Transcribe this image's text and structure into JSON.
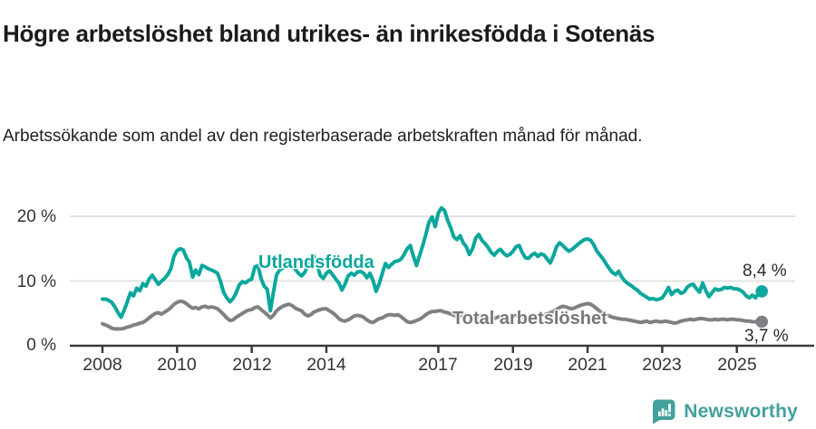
{
  "chart_data": {
    "type": "line",
    "title": "Högre arbetslöshet bland utrikes- än inrikesfödda i Sotenäs",
    "subtitle": "Arbetssökande som andel av den registerbaserade arbetskraften månad för månad.",
    "x_unit": "month",
    "x_range": "2008-01 till 2025-09",
    "x_tick_labels": [
      "2008",
      "2010",
      "2012",
      "2014",
      "2017",
      "2019",
      "2021",
      "2023",
      "2025"
    ],
    "y_tick_labels": [
      "0 %",
      "10 %",
      "20 %"
    ],
    "y_tick_values": [
      0,
      10,
      20
    ],
    "ylim": [
      0,
      22
    ],
    "grid": true,
    "legend_position": "inline-labels",
    "series": [
      {
        "name": "Utlandsfödda",
        "color": "#0ba79c",
        "end_label": "8,4 %",
        "end_value": 8.4,
        "values": [
          7.2,
          7.2,
          7.0,
          6.7,
          6.0,
          5.1,
          4.4,
          5.5,
          6.8,
          8.2,
          7.7,
          8.9,
          8.5,
          9.6,
          9.2,
          10.3,
          10.9,
          10.2,
          9.5,
          10.0,
          10.4,
          11.0,
          11.9,
          13.8,
          14.7,
          15.0,
          14.8,
          13.6,
          12.9,
          10.6,
          11.7,
          11.0,
          12.4,
          12.2,
          11.9,
          11.7,
          11.5,
          11.2,
          9.9,
          8.2,
          7.4,
          6.8,
          7.3,
          8.2,
          9.4,
          9.9,
          9.7,
          10.1,
          10.3,
          12.2,
          12.4,
          10.4,
          9.2,
          8.7,
          5.4,
          8.3,
          11.0,
          11.7,
          12.0,
          12.3,
          12.6,
          12.3,
          11.8,
          11.2,
          10.8,
          11.3,
          12.4,
          13.3,
          13.9,
          12.6,
          10.9,
          10.4,
          11.2,
          11.6,
          11.0,
          10.3,
          9.7,
          8.6,
          9.5,
          10.8,
          11.2,
          10.9,
          11.4,
          11.5,
          11.2,
          10.5,
          11.2,
          10.1,
          8.4,
          9.6,
          11.2,
          12.7,
          12.1,
          12.6,
          13.0,
          13.1,
          13.4,
          14.1,
          15.0,
          15.5,
          13.8,
          12.4,
          14.0,
          15.5,
          17.2,
          19.1,
          19.9,
          18.4,
          20.5,
          21.3,
          20.9,
          19.4,
          18.2,
          16.8,
          16.4,
          17.0,
          15.9,
          15.3,
          14.1,
          15.0,
          16.6,
          17.2,
          16.3,
          15.8,
          15.2,
          14.4,
          14.0,
          14.6,
          14.9,
          14.3,
          13.9,
          14.1,
          14.6,
          15.3,
          15.5,
          14.4,
          13.6,
          13.5,
          14.0,
          14.3,
          13.8,
          14.2,
          14.0,
          13.4,
          12.8,
          13.9,
          15.3,
          15.9,
          15.5,
          15.0,
          14.6,
          14.9,
          15.3,
          15.7,
          16.1,
          16.4,
          16.5,
          16.3,
          15.6,
          14.6,
          14.0,
          13.4,
          12.6,
          11.9,
          11.3,
          11.0,
          11.5,
          10.6,
          10.0,
          9.6,
          9.3,
          8.9,
          8.6,
          8.1,
          7.8,
          7.5,
          7.2,
          7.3,
          7.1,
          7.2,
          7.4,
          8.1,
          9.0,
          7.9,
          8.4,
          8.6,
          8.1,
          8.3,
          9.0,
          9.4,
          9.5,
          8.8,
          8.3,
          9.7,
          8.5,
          7.6,
          8.2,
          8.8,
          8.6,
          8.7,
          9.0,
          8.9,
          9.0,
          8.8,
          8.8,
          8.6,
          8.3,
          7.7,
          7.4,
          7.8,
          7.4,
          8.2,
          8.4
        ]
      },
      {
        "name": "Total arbetslöshet",
        "color": "#7f8084",
        "end_label": "3,7 %",
        "end_value": 3.7,
        "values": [
          3.4,
          3.2,
          3.0,
          2.7,
          2.6,
          2.6,
          2.6,
          2.7,
          2.9,
          3.0,
          3.2,
          3.3,
          3.5,
          3.6,
          3.9,
          4.3,
          4.7,
          5.0,
          5.1,
          4.9,
          5.2,
          5.5,
          5.9,
          6.4,
          6.7,
          6.9,
          6.8,
          6.5,
          6.1,
          5.8,
          5.9,
          5.7,
          6.0,
          6.1,
          5.9,
          6.0,
          5.9,
          5.7,
          5.3,
          4.8,
          4.3,
          3.9,
          4.0,
          4.4,
          4.7,
          5.0,
          5.3,
          5.5,
          5.6,
          5.9,
          6.0,
          5.6,
          5.2,
          4.8,
          4.3,
          4.7,
          5.4,
          5.8,
          6.1,
          6.3,
          6.4,
          6.2,
          5.8,
          5.6,
          5.4,
          4.9,
          4.6,
          4.8,
          5.2,
          5.4,
          5.6,
          5.7,
          5.7,
          5.4,
          5.1,
          4.7,
          4.2,
          3.9,
          3.8,
          4.0,
          4.3,
          4.6,
          4.7,
          4.6,
          4.4,
          4.0,
          3.7,
          3.6,
          3.9,
          4.2,
          4.3,
          4.6,
          4.8,
          4.8,
          4.7,
          4.8,
          4.5,
          4.1,
          3.7,
          3.6,
          3.7,
          3.9,
          4.1,
          4.4,
          4.8,
          5.1,
          5.3,
          5.3,
          5.4,
          5.4,
          5.2,
          5.1,
          4.9,
          4.7,
          4.5,
          4.6,
          4.8,
          4.8,
          4.6,
          4.5,
          4.5,
          4.6,
          4.7,
          4.5,
          4.3,
          4.1,
          4.2,
          4.4,
          4.5,
          4.4,
          4.3,
          4.4,
          4.5,
          4.6,
          4.5,
          4.4,
          4.3,
          4.4,
          4.6,
          4.5,
          4.6,
          4.7,
          4.8,
          4.9,
          5.1,
          5.3,
          5.6,
          5.9,
          6.1,
          6.0,
          5.8,
          5.7,
          5.9,
          6.1,
          6.3,
          6.4,
          6.5,
          6.4,
          6.1,
          5.7,
          5.3,
          5.0,
          4.8,
          4.6,
          4.4,
          4.3,
          4.2,
          4.1,
          4.1,
          4.0,
          3.9,
          3.8,
          3.7,
          3.6,
          3.7,
          3.8,
          3.6,
          3.7,
          3.8,
          3.7,
          3.7,
          3.8,
          3.7,
          3.6,
          3.5,
          3.6,
          3.8,
          3.9,
          4.0,
          4.1,
          4.0,
          4.1,
          4.2,
          4.2,
          4.1,
          4.0,
          4.0,
          4.1,
          4.0,
          4.1,
          4.1,
          4.0,
          4.1,
          4.1,
          4.0,
          4.0,
          3.9,
          3.8,
          3.8,
          3.7,
          3.7,
          3.7,
          3.7
        ]
      }
    ]
  },
  "footer": {
    "brand": "Newsworthy"
  }
}
